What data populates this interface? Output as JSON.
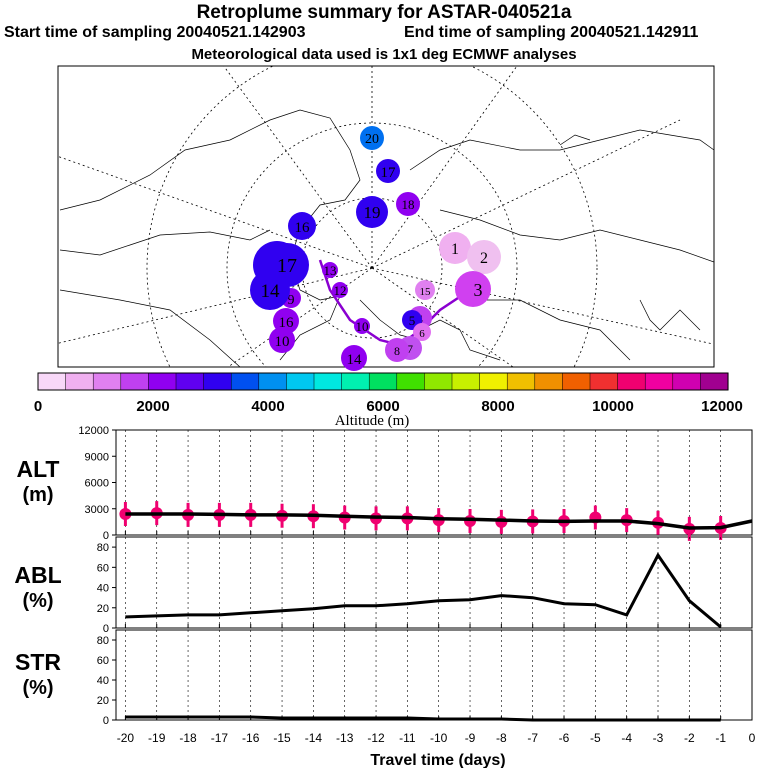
{
  "header": {
    "title": "Retroplume summary for ASTAR-040521a",
    "start": "Start time of sampling 20040521.142903",
    "end": "End time of sampling 20040521.142911",
    "met": "Meteorological data used is 1x1 deg ECMWF analyses"
  },
  "colorbar": {
    "colors": [
      "#f8d8f8",
      "#f0b0f0",
      "#e080f0",
      "#c040f0",
      "#9000f0",
      "#6000f0",
      "#3000f0",
      "#0050f0",
      "#0090f0",
      "#00c8f0",
      "#00e8e0",
      "#00f0b0",
      "#00e060",
      "#40e000",
      "#90e800",
      "#c8f000",
      "#f0f000",
      "#f0c000",
      "#f09000",
      "#f06000",
      "#f03030",
      "#f00070",
      "#f000a0",
      "#d000b0",
      "#a00090"
    ],
    "tick_labels": [
      "0",
      "2000",
      "4000",
      "6000",
      "8000",
      "10000",
      "12000"
    ],
    "label": "Altitude (m)"
  },
  "map": {
    "markers": [
      {
        "label": "1",
        "color": "#f0b0f0"
      },
      {
        "label": "2",
        "color": "#f0c0f0"
      },
      {
        "label": "3",
        "color": "#d040f0"
      },
      {
        "label": "4",
        "color": "#c040f0"
      },
      {
        "label": "5",
        "color": "#3000f0"
      },
      {
        "label": "6",
        "color": "#e070f0"
      },
      {
        "label": "7",
        "color": "#c050f0"
      },
      {
        "label": "8",
        "color": "#c040f0"
      },
      {
        "label": "9",
        "color": "#9000f0"
      },
      {
        "label": "10",
        "color": "#9000f0"
      },
      {
        "label": "11",
        "color": "#3000f0"
      },
      {
        "label": "12",
        "color": "#9000f0"
      },
      {
        "label": "13",
        "color": "#9000f0"
      },
      {
        "label": "14",
        "color": "#9000f0"
      },
      {
        "label": "15",
        "color": "#e080f0"
      },
      {
        "label": "16",
        "color": "#3000f0"
      },
      {
        "label": "17",
        "color": "#3000f0"
      },
      {
        "label": "18",
        "color": "#9000f0"
      },
      {
        "label": "19",
        "color": "#3000f0"
      },
      {
        "label": "20",
        "color": "#0070f0"
      },
      {
        "label": "17",
        "color": "#3000f0"
      },
      {
        "label": "14",
        "color": "#3000f0"
      },
      {
        "label": "16",
        "color": "#9000f0"
      },
      {
        "label": "10",
        "color": "#9000f0"
      }
    ]
  },
  "chart_data": [
    {
      "type": "scatter",
      "title": "ALT",
      "ylabel": "ALT (m)",
      "yticks": [
        "0",
        "3000",
        "6000",
        "9000",
        "12000"
      ],
      "ylim": [
        0,
        12000
      ],
      "x": [
        -20,
        -19,
        -18,
        -17,
        -16,
        -15,
        -14,
        -13,
        -12,
        -11,
        -10,
        -9,
        -8,
        -7,
        -6,
        -5,
        -4,
        -3,
        -2,
        -1,
        0
      ],
      "line_values": [
        2400,
        2400,
        2400,
        2350,
        2300,
        2300,
        2250,
        2150,
        2050,
        2000,
        1850,
        1800,
        1700,
        1600,
        1550,
        1600,
        1600,
        1300,
        800,
        850,
        1600
      ],
      "points": [
        [
          -20,
          2400
        ],
        [
          -19,
          2500
        ],
        [
          -18,
          2300
        ],
        [
          -17,
          2300
        ],
        [
          -16,
          2300
        ],
        [
          -15,
          2200
        ],
        [
          -14,
          2150
        ],
        [
          -13,
          2000
        ],
        [
          -12,
          1900
        ],
        [
          -11,
          1900
        ],
        [
          -10,
          1700
        ],
        [
          -9,
          1600
        ],
        [
          -8,
          1500
        ],
        [
          -7,
          1550
        ],
        [
          -6,
          1600
        ],
        [
          -5,
          2000
        ],
        [
          -4,
          1700
        ],
        [
          -3,
          1400
        ],
        [
          -2,
          700
        ],
        [
          -1,
          800
        ]
      ]
    },
    {
      "type": "line",
      "title": "ABL",
      "ylabel": "ABL (%)",
      "yticks": [
        "0",
        "20",
        "40",
        "60",
        "80"
      ],
      "ylim": [
        0,
        90
      ],
      "x": [
        -20,
        -19,
        -18,
        -17,
        -16,
        -15,
        -14,
        -13,
        -12,
        -11,
        -10,
        -9,
        -8,
        -7,
        -6,
        -5,
        -4,
        -3,
        -2,
        -1
      ],
      "values": [
        11,
        12,
        13,
        13,
        15,
        17,
        19,
        22,
        22,
        24,
        27,
        28,
        32,
        30,
        24,
        23,
        13,
        72,
        27,
        1
      ]
    },
    {
      "type": "line",
      "title": "STR",
      "ylabel": "STR (%)",
      "yticks": [
        "0",
        "20",
        "40",
        "60",
        "80"
      ],
      "ylim": [
        0,
        90
      ],
      "x": [
        -20,
        -19,
        -18,
        -17,
        -16,
        -15,
        -14,
        -13,
        -12,
        -11,
        -10,
        -9,
        -8,
        -7,
        -6,
        -5,
        -4,
        -3,
        -2,
        -1
      ],
      "values": [
        3,
        3,
        3,
        3,
        3,
        2,
        2,
        2,
        2,
        2,
        1,
        1,
        1,
        0,
        0,
        0,
        0,
        0,
        0,
        0
      ],
      "xlabel": "Travel time (days)",
      "xticks": [
        "-20",
        "-19",
        "-18",
        "-17",
        "-16",
        "-15",
        "-14",
        "-13",
        "-12",
        "-11",
        "-10",
        "-9",
        "-8",
        "-7",
        "-6",
        "-5",
        "-4",
        "-3",
        "-2",
        "-1",
        "0"
      ]
    }
  ],
  "panel_labels": {
    "alt_a": "ALT",
    "alt_b": "(m)",
    "abl_a": "ABL",
    "abl_b": "(%)",
    "str_a": "STR",
    "str_b": "(%)"
  }
}
